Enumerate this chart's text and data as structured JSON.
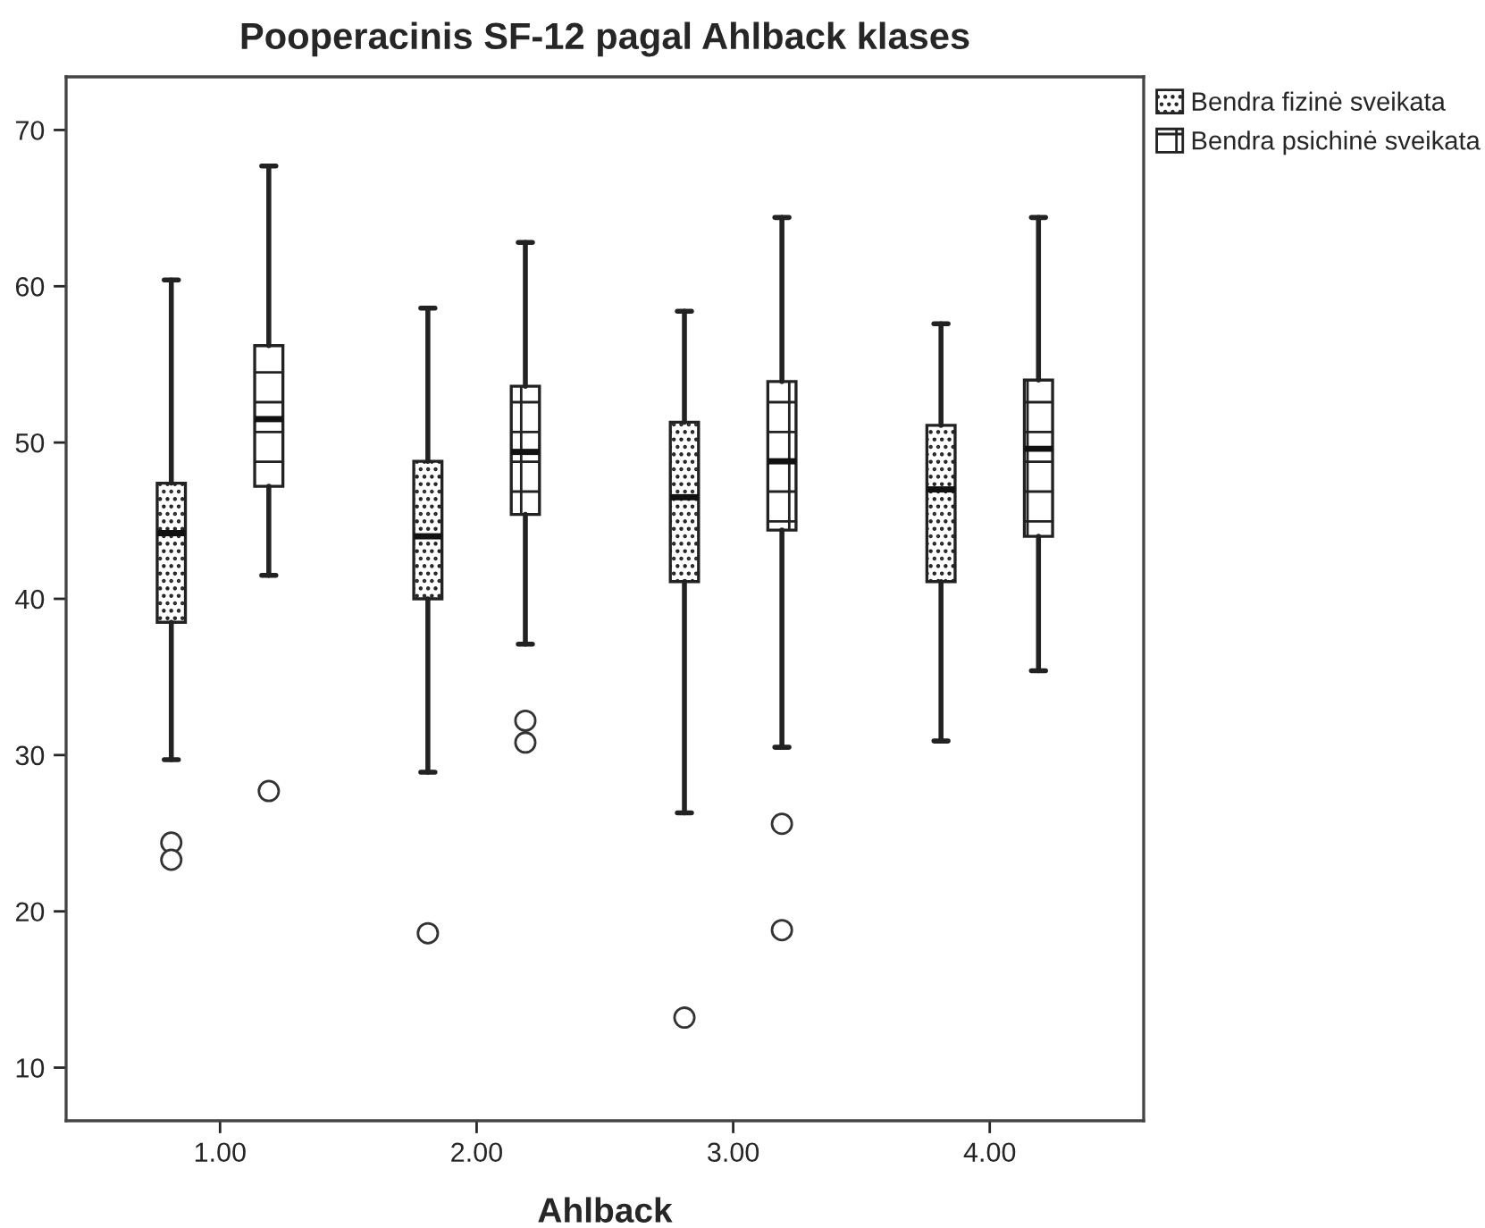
{
  "chart_data": {
    "type": "box",
    "title": "Pooperacinis SF-12 pagal Ahlback klases",
    "xlabel": "Ahlback",
    "categories": [
      "1.00",
      "2.00",
      "3.00",
      "4.00"
    ],
    "series": [
      {
        "name": "Bendra fizinė sveikata",
        "color": "#222222",
        "boxes": [
          {
            "low": 29.7,
            "q1": 38.5,
            "median": 44.2,
            "q3": 47.4,
            "high": 60.4,
            "outliers": [
              24.4,
              23.3
            ]
          },
          {
            "low": 28.9,
            "q1": 40.0,
            "median": 44.0,
            "q3": 48.8,
            "high": 58.6,
            "outliers": [
              18.6
            ]
          },
          {
            "low": 26.3,
            "q1": 41.1,
            "median": 46.5,
            "q3": 51.3,
            "high": 58.4,
            "outliers": [
              13.2
            ]
          },
          {
            "low": 30.9,
            "q1": 41.1,
            "median": 47.0,
            "q3": 51.1,
            "high": 57.6
          }
        ]
      },
      {
        "name": "Bendra psichinė sveikata",
        "color": "#222222",
        "boxes": [
          {
            "low": 41.5,
            "q1": 47.2,
            "median": 51.5,
            "q3": 56.2,
            "high": 67.7,
            "outliers": [
              27.7
            ]
          },
          {
            "low": 37.1,
            "q1": 45.4,
            "median": 49.4,
            "q3": 53.6,
            "high": 62.8,
            "outliers": [
              32.2,
              30.8
            ]
          },
          {
            "low": 30.5,
            "q1": 44.4,
            "median": 48.8,
            "q3": 53.9,
            "high": 64.4,
            "outliers": [
              25.6,
              18.8
            ]
          },
          {
            "low": 35.4,
            "q1": 44.0,
            "median": 49.6,
            "q3": 54.0,
            "high": 64.4
          }
        ]
      }
    ],
    "ylim": [
      6.6,
      73.4
    ],
    "yticks": [
      10,
      20,
      30,
      40,
      50,
      60,
      70
    ],
    "grid": false,
    "legend": "top right"
  }
}
